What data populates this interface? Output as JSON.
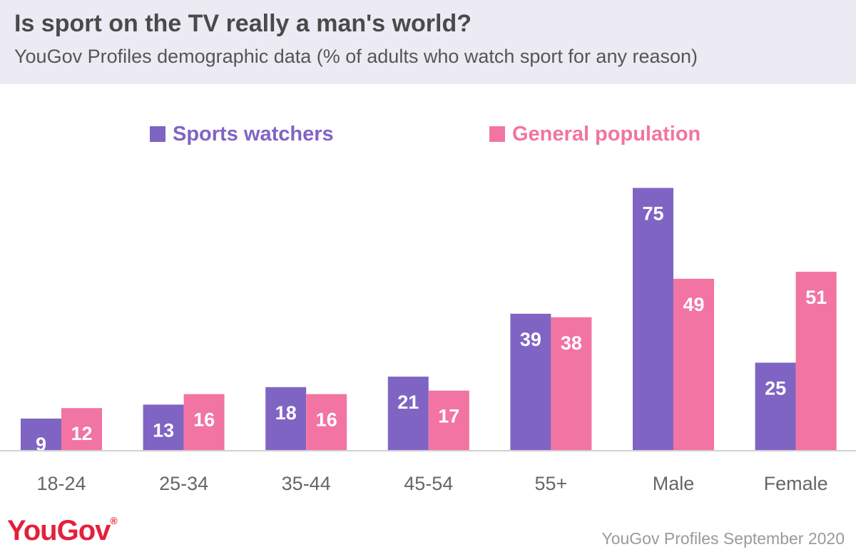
{
  "header": {
    "title": "Is sport on the TV really a man's world?",
    "subtitle": "YouGov Profiles demographic data (% of adults who watch sport for any reason)"
  },
  "footer": {
    "logo_text": "YouGov",
    "logo_mark": "®",
    "source": "YouGov Profiles September 2020"
  },
  "chart_data": {
    "type": "bar",
    "categories": [
      "18-24",
      "25-34",
      "35-44",
      "45-54",
      "55+",
      "Male",
      "Female"
    ],
    "series": [
      {
        "name": "Sports watchers",
        "color": "#8064c4",
        "values": [
          9,
          13,
          18,
          21,
          39,
          75,
          25
        ]
      },
      {
        "name": "General population",
        "color": "#f274a2",
        "values": [
          12,
          16,
          16,
          17,
          38,
          49,
          51
        ]
      }
    ],
    "ylim": [
      0,
      80
    ],
    "grid": false,
    "legend_position": "top-center",
    "baseline_color": "#d0d0d0"
  }
}
